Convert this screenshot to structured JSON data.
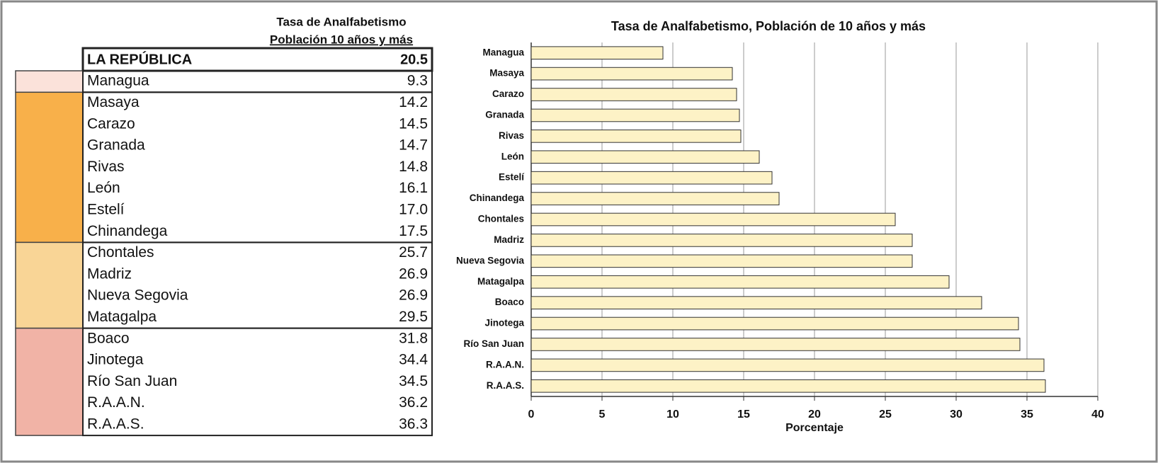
{
  "table": {
    "title": [
      "Tasa de Analfabetismo",
      "Población 10 años y más"
    ],
    "header": {
      "name": "LA REPÚBLICA",
      "value": "20.5"
    },
    "groups": [
      {
        "color": "#fbe2da",
        "rows": [
          {
            "name": "Managua",
            "value": "9.3"
          }
        ]
      },
      {
        "color": "#f8b04a",
        "rows": [
          {
            "name": "Masaya",
            "value": "14.2"
          },
          {
            "name": "Carazo",
            "value": "14.5"
          },
          {
            "name": "Granada",
            "value": "14.7"
          },
          {
            "name": "Rivas",
            "value": "14.8"
          },
          {
            "name": "León",
            "value": "16.1"
          },
          {
            "name": "Estelí",
            "value": "17.0"
          },
          {
            "name": "Chinandega",
            "value": "17.5"
          }
        ]
      },
      {
        "color": "#f9d596",
        "rows": [
          {
            "name": "Chontales",
            "value": "25.7"
          },
          {
            "name": "Madriz",
            "value": "26.9"
          },
          {
            "name": "Nueva Segovia",
            "value": "26.9"
          },
          {
            "name": "Matagalpa",
            "value": "29.5"
          }
        ]
      },
      {
        "color": "#f1b3a6",
        "rows": [
          {
            "name": "Boaco",
            "value": "31.8"
          },
          {
            "name": "Jinotega",
            "value": "34.4"
          },
          {
            "name": "Río San Juan",
            "value": "34.5"
          },
          {
            "name": "R.A.A.N.",
            "value": "36.2"
          },
          {
            "name": "R.A.A.S.",
            "value": "36.3"
          }
        ]
      }
    ]
  },
  "chart_data": {
    "type": "barh",
    "title": "Tasa de Analfabetismo, Población de 10 años y más",
    "x_label": "Porcentaje",
    "categories": [
      "Managua",
      "Masaya",
      "Carazo",
      "Granada",
      "Rivas",
      "León",
      "Estelí",
      "Chinandega",
      "Chontales",
      "Madriz",
      "Nueva Segovia",
      "Matagalpa",
      "Boaco",
      "Jinotega",
      "Río San Juan",
      "R.A.A.N.",
      "R.A.A.S."
    ],
    "values": [
      9.3,
      14.2,
      14.5,
      14.7,
      14.8,
      16.1,
      17.0,
      17.5,
      25.7,
      26.9,
      26.9,
      29.5,
      31.8,
      34.4,
      34.5,
      36.2,
      36.3
    ],
    "color": "#fdf2c6",
    "xlim": [
      0,
      40
    ],
    "xticks": [
      0,
      5,
      10,
      15,
      20,
      25,
      30,
      35,
      40
    ],
    "grid": true
  }
}
